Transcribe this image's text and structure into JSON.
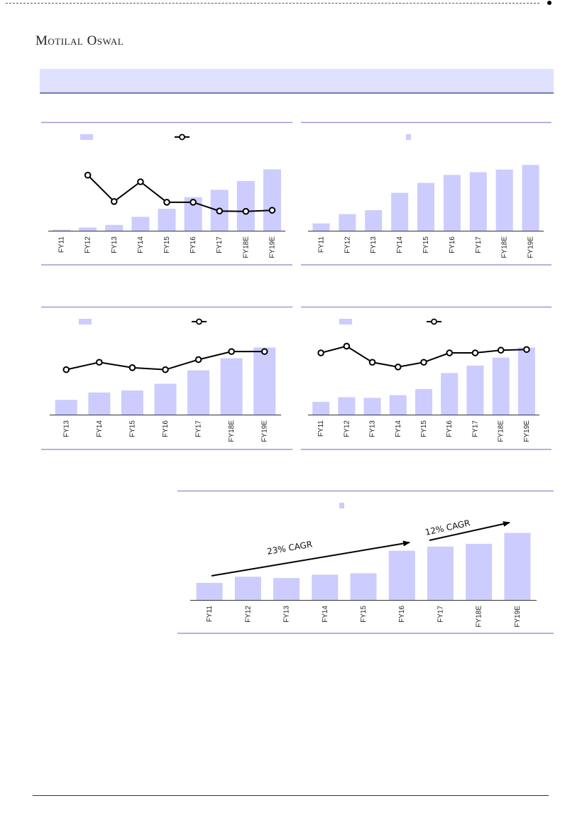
{
  "header": {
    "brand": "Motilal Oswal"
  },
  "colors": {
    "bar": "#ccccff",
    "line": "#000000",
    "rule": "#9b9bd4",
    "axis": "#333333"
  },
  "chart_data": [
    {
      "type": "bar",
      "legend": {
        "bar": "",
        "line": ""
      },
      "categories": [
        "FY11",
        "FY12",
        "FY13",
        "FY14",
        "FY15",
        "FY16",
        "FY17",
        "FY18E",
        "FY19E"
      ],
      "series": [
        {
          "kind": "bar",
          "values": [
            1.5,
            4.5,
            8,
            19,
            30,
            46,
            56,
            68,
            84
          ]
        },
        {
          "kind": "line",
          "values": [
            null,
            76,
            40,
            67,
            39,
            39,
            27,
            26.5,
            28
          ]
        }
      ],
      "ylim": [
        0,
        100
      ]
    },
    {
      "type": "bar",
      "legend": {
        "bar": ""
      },
      "categories": [
        "FY11",
        "FY12",
        "FY13",
        "FY14",
        "FY15",
        "FY16",
        "FY17",
        "FY18E",
        "FY19E"
      ],
      "series": [
        {
          "kind": "bar",
          "values": [
            11,
            25,
            31,
            57,
            72,
            84,
            88,
            92,
            99
          ]
        }
      ],
      "ylim": [
        0,
        110
      ]
    },
    {
      "type": "bar",
      "legend": {
        "bar": "",
        "line": ""
      },
      "categories": [
        "FY13",
        "FY14",
        "FY15",
        "FY16",
        "FY17",
        "FY18E",
        "FY19E"
      ],
      "series": [
        {
          "kind": "bar",
          "values": [
            22,
            33,
            36,
            46,
            66,
            84,
            100
          ]
        },
        {
          "kind": "line",
          "values": [
            67,
            78,
            70,
            67,
            82,
            94,
            94
          ]
        }
      ],
      "ylim": [
        0,
        110
      ]
    },
    {
      "type": "bar",
      "legend": {
        "bar": "",
        "line": ""
      },
      "categories": [
        "FY11",
        "FY12",
        "FY13",
        "FY14",
        "FY15",
        "FY16",
        "FY17",
        "FY18E",
        "FY19E"
      ],
      "series": [
        {
          "kind": "bar",
          "values": [
            19,
            26,
            25,
            29,
            38,
            62,
            73,
            85,
            100
          ]
        },
        {
          "kind": "line",
          "values": [
            92,
            102,
            78,
            71,
            78,
            92,
            92,
            96,
            97
          ]
        }
      ],
      "ylim": [
        0,
        110
      ]
    },
    {
      "type": "bar",
      "legend": {
        "bar": ""
      },
      "categories": [
        "FY11",
        "FY12",
        "FY13",
        "FY14",
        "FY15",
        "FY16",
        "FY17",
        "FY18E",
        "FY19E"
      ],
      "series": [
        {
          "kind": "bar",
          "values": [
            25,
            34,
            32,
            37,
            39,
            72,
            78,
            82,
            98
          ]
        }
      ],
      "annotations": [
        "23% CAGR",
        "12% CAGR"
      ],
      "ylim": [
        0,
        110
      ]
    }
  ]
}
